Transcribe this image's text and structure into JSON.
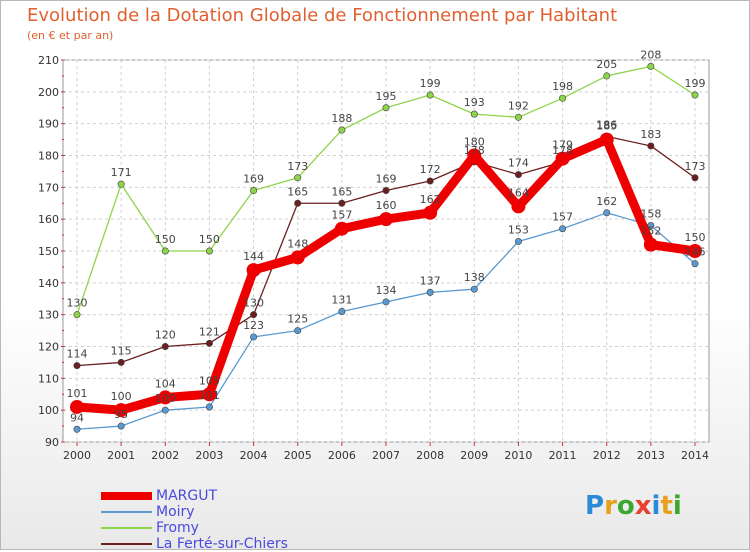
{
  "title": "Evolution de la Dotation Globale de Fonctionnement par Habitant",
  "subtitle": "(en € et par an)",
  "logo": {
    "letters": [
      "P",
      "r",
      "o",
      "x",
      "i",
      "t",
      "i"
    ],
    "colors": [
      "#2a8ad8",
      "#e8a020",
      "#3aa830",
      "#e84030",
      "#2a8ad8",
      "#e8a020",
      "#3aa830"
    ]
  },
  "chart_data": {
    "type": "line",
    "categories": [
      "2000",
      "2001",
      "2002",
      "2003",
      "2004",
      "2005",
      "2006",
      "2007",
      "2008",
      "2009",
      "2010",
      "2011",
      "2012",
      "2013",
      "2014"
    ],
    "ylim": [
      90,
      210
    ],
    "yticks": [
      "90",
      "100",
      "110",
      "120",
      "130",
      "140",
      "150",
      "160",
      "170",
      "180",
      "190",
      "200",
      "210"
    ],
    "grid": true,
    "series": [
      {
        "name": "Fromy",
        "color": "#8ed44a",
        "values": [
          130,
          171,
          150,
          150,
          169,
          173,
          188,
          195,
          199,
          193,
          192,
          198,
          205,
          208,
          199
        ],
        "labels": [
          "130",
          "171",
          "150",
          "150",
          "169",
          "173",
          "188",
          "195",
          "199",
          "193",
          "192",
          "198",
          "205",
          "208",
          "199"
        ]
      },
      {
        "name": "La Ferté-sur-Chiers",
        "color": "#6b1f1f",
        "values": [
          114,
          115,
          120,
          121,
          130,
          165,
          165,
          169,
          172,
          178,
          174,
          178,
          186,
          183,
          173
        ],
        "labels": [
          "114",
          "115",
          "120",
          "121",
          "130",
          "165",
          "165",
          "169",
          "172",
          "178",
          "174",
          "178",
          "186",
          "183",
          "173"
        ]
      },
      {
        "name": "Moiry",
        "color": "#5a9ad0",
        "values": [
          94,
          95,
          100,
          101,
          123,
          125,
          131,
          134,
          137,
          138,
          153,
          157,
          162,
          158,
          146
        ],
        "labels": [
          "94",
          "95",
          "100",
          "101",
          "123",
          "125",
          "131",
          "134",
          "137",
          "138",
          "153",
          "157",
          "162",
          "158",
          "146"
        ]
      },
      {
        "name": "MARGUT",
        "color": "#ee0000",
        "values": [
          101,
          100,
          104,
          105,
          144,
          148,
          157,
          160,
          162,
          180,
          164,
          179,
          185,
          152,
          150
        ],
        "labels": [
          "101",
          "100",
          "104",
          "105",
          "144",
          "148",
          "157",
          "160",
          "162",
          "180",
          "164",
          "179",
          "185",
          "152",
          "150"
        ]
      }
    ],
    "legend_order": [
      "MARGUT",
      "Moiry",
      "Fromy",
      "La Ferté-sur-Chiers"
    ]
  }
}
